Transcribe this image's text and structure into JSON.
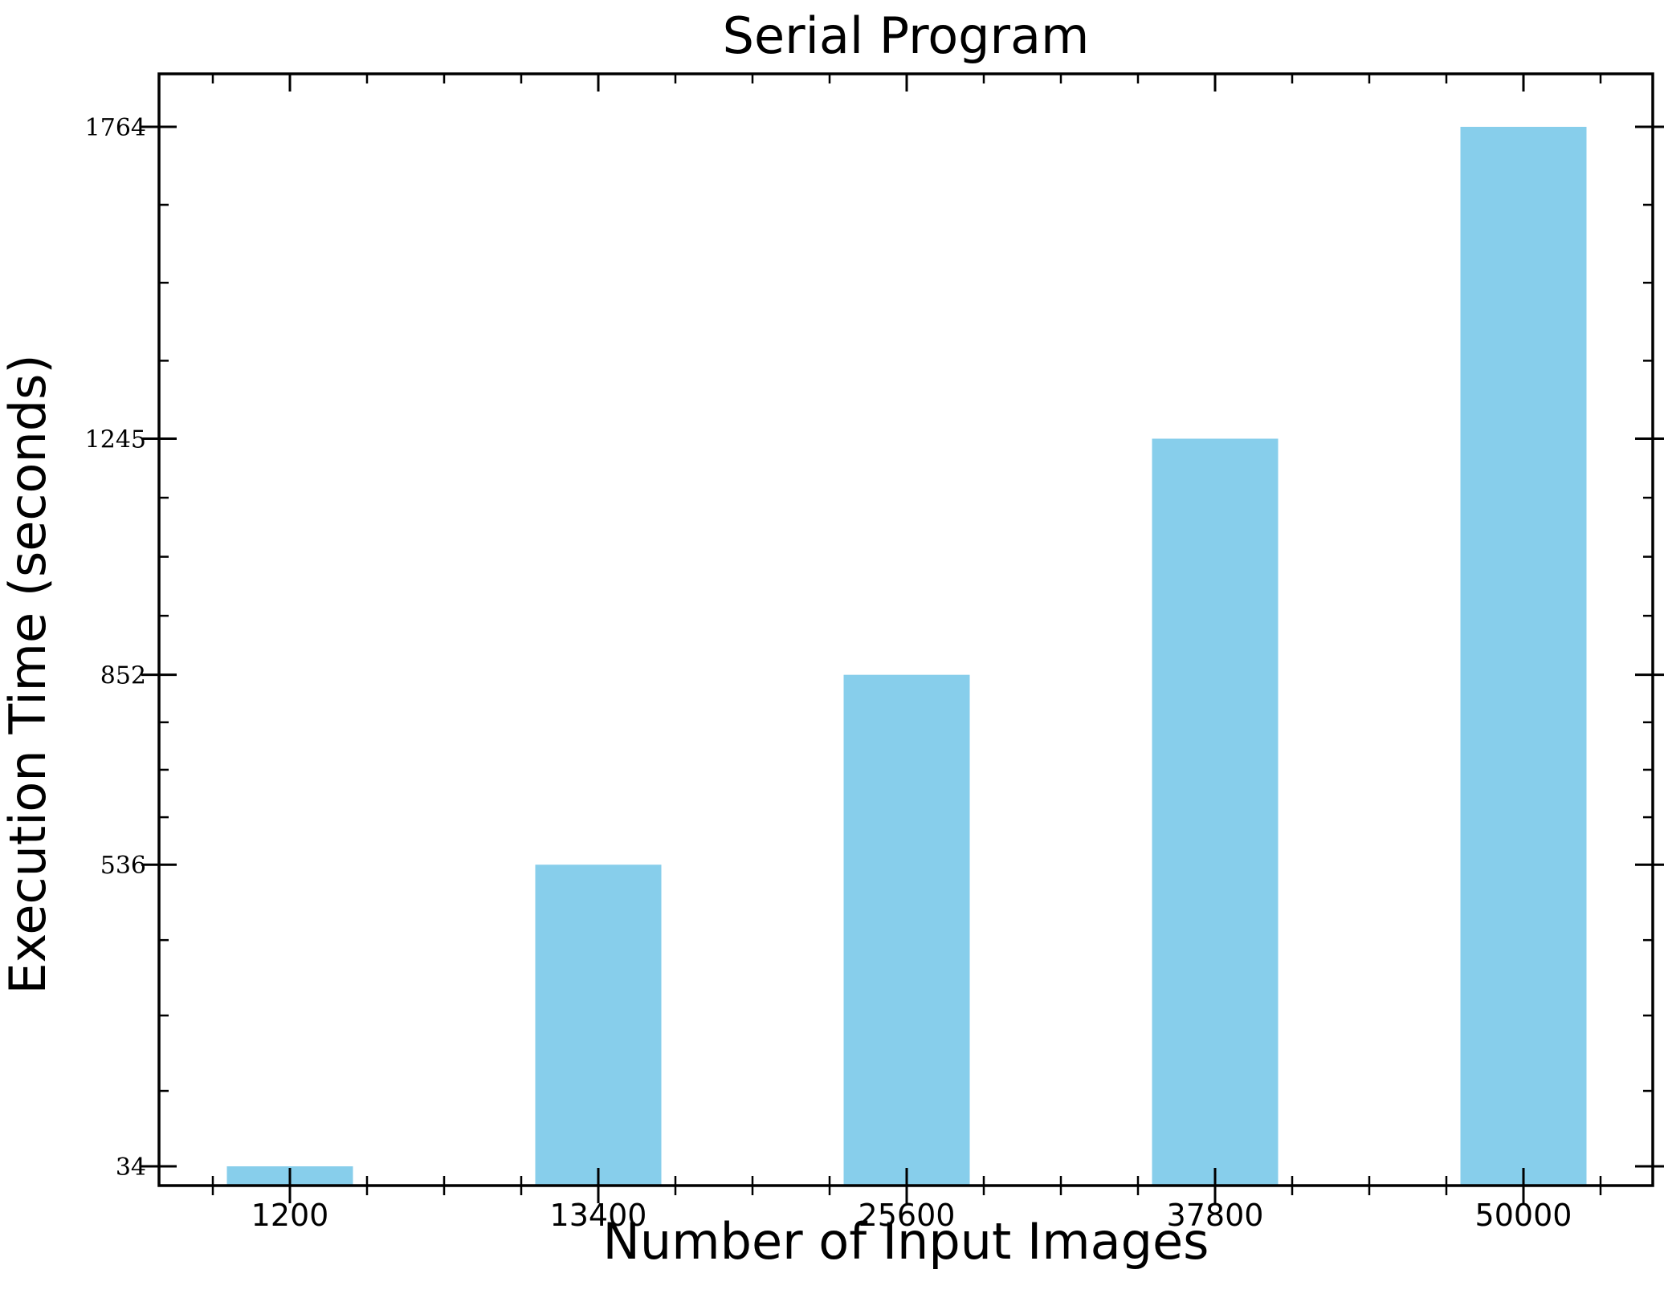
{
  "chart_data": {
    "type": "bar",
    "title": "Serial Program",
    "xlabel": "Number of Input Images",
    "ylabel": "Execution Time (seconds)",
    "categories": [
      "1200",
      "13400",
      "25600",
      "37800",
      "50000"
    ],
    "values": [
      34,
      536,
      852,
      1245,
      1764
    ],
    "y_ticks": [
      "34",
      "536",
      "852",
      "1245",
      "1764"
    ],
    "bar_color": "#87CEEB",
    "grid": false,
    "legend": "none"
  }
}
